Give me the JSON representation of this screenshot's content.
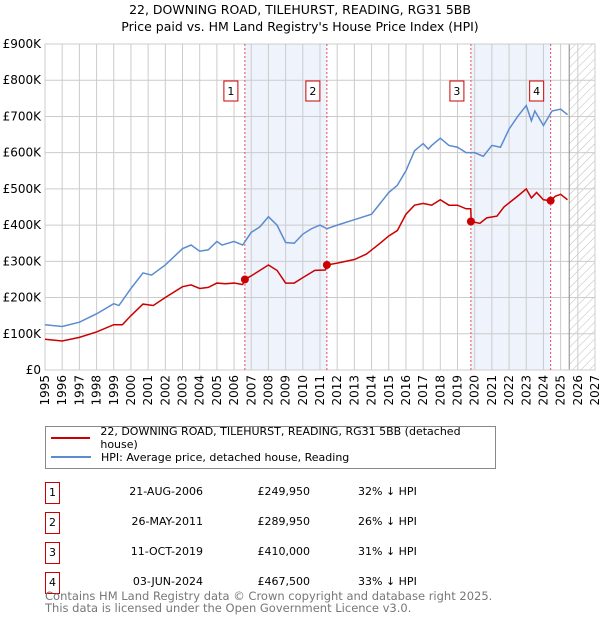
{
  "title": {
    "line1": "22, DOWNING ROAD, TILEHURST, READING, RG31 5BB",
    "line2": "Price paid vs. HM Land Registry's House Price Index (HPI)"
  },
  "chart_data": {
    "type": "line",
    "xlim": [
      1995,
      2027
    ],
    "ylim": [
      0,
      900000
    ],
    "yticks": [
      0,
      100000,
      200000,
      300000,
      400000,
      500000,
      600000,
      700000,
      800000,
      900000
    ],
    "ytick_labels": [
      "£0",
      "£100K",
      "£200K",
      "£300K",
      "£400K",
      "£500K",
      "£600K",
      "£700K",
      "£800K",
      "£900K"
    ],
    "xticks": [
      1995,
      1996,
      1997,
      1998,
      1999,
      2000,
      2001,
      2002,
      2003,
      2004,
      2005,
      2006,
      2007,
      2008,
      2009,
      2010,
      2011,
      2012,
      2013,
      2014,
      2015,
      2016,
      2017,
      2018,
      2019,
      2020,
      2021,
      2022,
      2023,
      2024,
      2025,
      2026,
      2027
    ],
    "grid": true,
    "forecast_from": 2025.5,
    "shaded_ranges": [
      [
        2006.63,
        2011.4
      ],
      [
        2019.78,
        2024.42
      ]
    ],
    "series": [
      {
        "name": "22, DOWNING ROAD, TILEHURST, READING, RG31 5BB (detached house)",
        "color": "#cc0000",
        "x": [
          1995,
          1996,
          1997,
          1998,
          1999,
          1999.5,
          2000,
          2000.7,
          2001.3,
          2002,
          2003,
          2003.5,
          2004,
          2004.5,
          2005,
          2005.5,
          2006,
          2006.5,
          2006.63,
          2007,
          2008,
          2008.5,
          2009,
          2009.5,
          2010,
          2010.7,
          2011.3,
          2011.4,
          2012,
          2013,
          2013.7,
          2014.5,
          2015,
          2015.5,
          2016,
          2016.5,
          2017,
          2017.5,
          2018,
          2018.5,
          2019,
          2019.5,
          2019.77,
          2019.8,
          2020.3,
          2020.7,
          2021.3,
          2021.7,
          2022.5,
          2023,
          2023.3,
          2023.6,
          2024,
          2024.42,
          2024.7,
          2025,
          2025.4
        ],
        "y": [
          85000,
          80000,
          90000,
          105000,
          125000,
          125000,
          150000,
          182000,
          178000,
          200000,
          230000,
          235000,
          225000,
          228000,
          240000,
          238000,
          240000,
          236000,
          249950,
          260000,
          290000,
          275000,
          240000,
          240000,
          255000,
          275000,
          276000,
          289950,
          295000,
          305000,
          320000,
          350000,
          370000,
          385000,
          430000,
          455000,
          460000,
          455000,
          470000,
          455000,
          455000,
          445000,
          445000,
          410000,
          405000,
          420000,
          425000,
          450000,
          480000,
          500000,
          475000,
          490000,
          470000,
          467500,
          480000,
          485000,
          470000
        ]
      },
      {
        "name": "HPI: Average price, detached house, Reading",
        "color": "#5b8bd0",
        "x": [
          1995,
          1996,
          1997,
          1998,
          1999,
          1999.3,
          2000,
          2000.7,
          2001.2,
          2002,
          2003,
          2003.5,
          2004,
          2004.5,
          2005,
          2005.3,
          2006,
          2006.5,
          2007,
          2007.5,
          2008,
          2008.5,
          2009,
          2009.5,
          2010,
          2010.5,
          2011,
          2011.4,
          2012,
          2013,
          2014,
          2014.5,
          2015,
          2015.5,
          2016,
          2016.5,
          2017,
          2017.3,
          2017.5,
          2018,
          2018.5,
          2019,
          2019.5,
          2020,
          2020.5,
          2021,
          2021.5,
          2022,
          2022.5,
          2023,
          2023.3,
          2023.5,
          2024,
          2024.5,
          2025,
          2025.4
        ],
        "y": [
          125000,
          120000,
          132000,
          155000,
          183000,
          178000,
          225000,
          268000,
          262000,
          290000,
          335000,
          345000,
          328000,
          332000,
          355000,
          345000,
          355000,
          345000,
          380000,
          395000,
          423000,
          400000,
          352000,
          350000,
          375000,
          390000,
          400000,
          390000,
          400000,
          415000,
          430000,
          460000,
          490000,
          510000,
          550000,
          605000,
          625000,
          610000,
          620000,
          640000,
          620000,
          615000,
          600000,
          600000,
          590000,
          620000,
          615000,
          665000,
          700000,
          730000,
          688000,
          715000,
          675000,
          715000,
          720000,
          705000
        ]
      }
    ],
    "sales": [
      {
        "label": "1",
        "x": 2006.63,
        "y": 249950,
        "date": "21-AUG-2006",
        "price": "£249,950",
        "hpi": "32% ↓ HPI"
      },
      {
        "label": "2",
        "x": 2011.4,
        "y": 289950,
        "date": "26-MAY-2011",
        "price": "£289,950",
        "hpi": "26% ↓ HPI"
      },
      {
        "label": "3",
        "x": 2019.78,
        "y": 410000,
        "date": "11-OCT-2019",
        "price": "£410,000",
        "hpi": "31% ↓ HPI"
      },
      {
        "label": "4",
        "x": 2024.42,
        "y": 467500,
        "date": "03-JUN-2024",
        "price": "£467,500",
        "hpi": "33% ↓ HPI"
      }
    ],
    "legend_position": "below"
  },
  "footer": {
    "line1": "Contains HM Land Registry data © Crown copyright and database right 2025.",
    "line2": "This data is licensed under the Open Government Licence v3.0."
  }
}
